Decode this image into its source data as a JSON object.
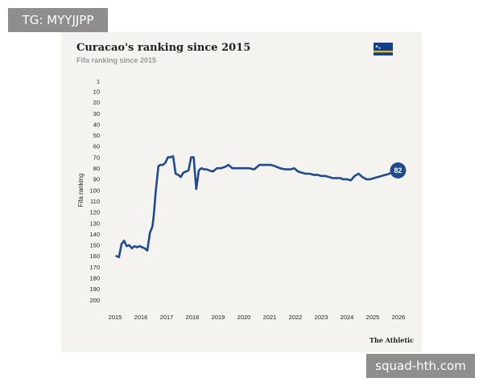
{
  "overlay": {
    "top_tag": "TG: MYYJJPP",
    "bottom_tag": "squad-hth.com"
  },
  "colors": {
    "line": "#1f4b8e",
    "background": "#f4f3f0",
    "overlay_tag": "#8e8e8e"
  },
  "icons": {
    "flag": "curacao-flag-icon"
  },
  "brand": "The Athletic",
  "chart_data": {
    "type": "line",
    "title": "Curacao's ranking since 2015",
    "subtitle": "Fifa ranking since 2015",
    "xlabel": "",
    "ylabel": "Fifa ranking",
    "inverted_y": true,
    "ylim": [
      1,
      200
    ],
    "xlim": [
      2015,
      2026
    ],
    "grid": false,
    "legend": "none",
    "y_ticks": [
      1,
      10,
      20,
      30,
      40,
      50,
      60,
      70,
      80,
      90,
      100,
      110,
      120,
      130,
      140,
      150,
      160,
      170,
      180,
      190,
      200
    ],
    "x_ticks": [
      "2015",
      "2016",
      "2017",
      "2018",
      "2019",
      "2020",
      "2021",
      "2022",
      "2023",
      "2024",
      "2025",
      "2026"
    ],
    "end_label": "82",
    "series": [
      {
        "x": [
          2015.05,
          2015.15,
          2015.25,
          2015.35,
          2015.45,
          2015.55,
          2015.65,
          2015.75,
          2015.85,
          2015.95,
          2016.05,
          2016.15,
          2016.25,
          2016.35,
          2016.45,
          2016.5,
          2016.58,
          2016.68,
          2016.75,
          2016.85,
          2016.95,
          2017.05,
          2017.15,
          2017.25,
          2017.35,
          2017.45,
          2017.55,
          2017.65,
          2017.75,
          2017.85,
          2017.95,
          2018.05,
          2018.15,
          2018.25,
          2018.35,
          2018.45,
          2018.55,
          2018.65,
          2018.8,
          2018.95,
          2019.1,
          2019.25,
          2019.4,
          2019.55,
          2019.7,
          2019.8,
          2019.9,
          2020.05,
          2020.2,
          2020.4,
          2020.6,
          2020.8,
          2020.92,
          2021.05,
          2021.2,
          2021.4,
          2021.6,
          2021.8,
          2021.95,
          2022.1,
          2022.25,
          2022.4,
          2022.55,
          2022.7,
          2022.85,
          2023.0,
          2023.15,
          2023.3,
          2023.45,
          2023.6,
          2023.75,
          2023.85,
          2024.0,
          2024.15,
          2024.3,
          2024.45,
          2024.6,
          2024.75,
          2024.9,
          2025.05,
          2025.2,
          2025.35,
          2025.5,
          2025.65,
          2025.8,
          2025.92
        ],
        "y": [
          160,
          161,
          149,
          146,
          151,
          150,
          153,
          151,
          152,
          151,
          152,
          153,
          155,
          139,
          133,
          123,
          100,
          78,
          77,
          77,
          75,
          70,
          70,
          69,
          85,
          86,
          88,
          84,
          83,
          82,
          70,
          70,
          99,
          82,
          80,
          81,
          81,
          82,
          83,
          80,
          80,
          79,
          77,
          80,
          80,
          80,
          80,
          80,
          80,
          81,
          77,
          77,
          77,
          77,
          78,
          80,
          81,
          81,
          80,
          83,
          84,
          85,
          85,
          86,
          86,
          87,
          87,
          88,
          89,
          89,
          89,
          90,
          90,
          91,
          87,
          85,
          88,
          90,
          90,
          89,
          88,
          87,
          86,
          85,
          83,
          82
        ]
      }
    ]
  }
}
